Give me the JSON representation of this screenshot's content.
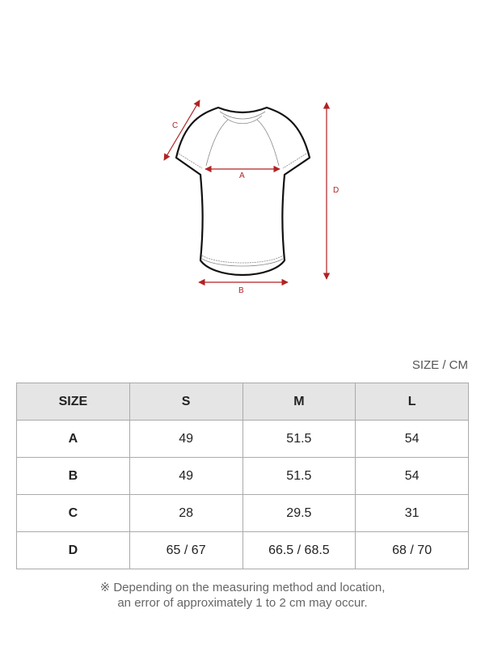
{
  "diagram": {
    "labels": {
      "a": "A",
      "b": "B",
      "c": "C",
      "d": "D"
    },
    "arrow_color": "#b22222"
  },
  "unit_label": "SIZE / CM",
  "table": {
    "headers": [
      "SIZE",
      "S",
      "M",
      "L"
    ],
    "rows": [
      [
        "A",
        "49",
        "51.5",
        "54"
      ],
      [
        "B",
        "49",
        "51.5",
        "54"
      ],
      [
        "C",
        "28",
        "29.5",
        "31"
      ],
      [
        "D",
        "65 / 67",
        "66.5 / 68.5",
        "68 / 70"
      ]
    ]
  },
  "note": {
    "line1": "※ Depending on the measuring method and location,",
    "line2": "an error of approximately 1 to 2 cm may occur."
  }
}
